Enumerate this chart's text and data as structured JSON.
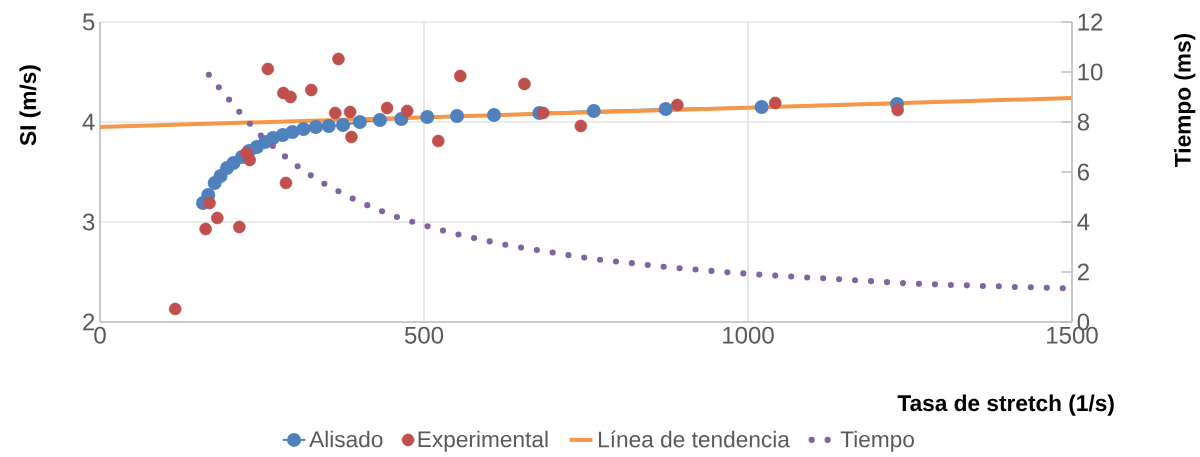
{
  "chart_data": {
    "type": "scatter",
    "xlabel": "Tasa de stretch (1/s)",
    "ylabel": "SI (m/s)",
    "y2label": "Tiempo (ms)",
    "xlim": [
      0,
      1500
    ],
    "xticks": [
      0,
      500,
      1000,
      1500
    ],
    "ylim": [
      2,
      5
    ],
    "yticks": [
      2,
      3,
      4,
      5
    ],
    "y2lim": [
      0,
      12
    ],
    "y2ticks": [
      0,
      2,
      4,
      6,
      8,
      10,
      12
    ],
    "grid": true,
    "legend": "bottom",
    "series": [
      {
        "name": "Alisado",
        "type": "line",
        "color": "#4f81bd",
        "marker": "circle",
        "line_style": "solid",
        "x": [
          159,
          167,
          177,
          186,
          196,
          206,
          219,
          230,
          242,
          255,
          267,
          282,
          297,
          314,
          333,
          353,
          375,
          401,
          432,
          465,
          505,
          551,
          608,
          678,
          762,
          873,
          1021,
          1230
        ],
        "values": [
          3.19,
          3.27,
          3.39,
          3.46,
          3.54,
          3.59,
          3.65,
          3.71,
          3.75,
          3.8,
          3.84,
          3.87,
          3.9,
          3.93,
          3.95,
          3.96,
          3.97,
          4.0,
          4.02,
          4.03,
          4.05,
          4.06,
          4.07,
          4.09,
          4.11,
          4.13,
          4.15,
          4.18
        ]
      },
      {
        "name": "Experimental",
        "color": "#c0504d",
        "marker": "circle",
        "x": [
          116,
          163,
          169,
          181,
          215,
          226,
          231,
          259,
          283,
          294,
          287,
          326,
          368,
          363,
          386,
          388,
          443,
          474,
          522,
          556,
          655,
          684,
          742,
          891,
          1042,
          1231
        ],
        "values": [
          2.13,
          2.93,
          3.19,
          3.04,
          2.95,
          3.69,
          3.62,
          4.53,
          4.29,
          4.25,
          3.39,
          4.32,
          4.63,
          4.09,
          4.1,
          3.85,
          4.14,
          4.11,
          3.81,
          4.46,
          4.38,
          4.09,
          3.96,
          4.17,
          4.19,
          4.12
        ]
      },
      {
        "name": "Línea de tendencia",
        "type": "line",
        "color": "#f79646",
        "marker": "none",
        "line_style": "solid",
        "x": [
          0,
          1500
        ],
        "values": [
          3.95,
          4.24
        ]
      },
      {
        "name": "Tiempo",
        "type": "line",
        "axis": "y2",
        "color": "#8064a2",
        "marker": "none",
        "line_style": "dotted",
        "x": [
          168,
          184,
          200,
          216,
          233,
          250,
          269,
          288,
          308,
          329,
          350,
          373,
          395,
          418,
          441,
          465,
          489,
          513,
          537,
          561,
          586,
          611,
          635,
          660,
          685,
          709,
          734,
          759,
          784,
          809,
          834,
          859,
          884,
          909,
          934,
          959,
          984,
          1009,
          1034,
          1059,
          1084,
          1110,
          1135,
          1159,
          1185,
          1210,
          1235,
          1260,
          1285,
          1310,
          1335,
          1360,
          1385,
          1410,
          1436,
          1460,
          1486
        ],
        "values": [
          9.89,
          9.37,
          8.87,
          8.37,
          7.88,
          7.41,
          6.99,
          6.57,
          6.17,
          5.8,
          5.47,
          5.16,
          4.87,
          4.61,
          4.37,
          4.13,
          3.96,
          3.77,
          3.6,
          3.45,
          3.31,
          3.17,
          3.04,
          2.93,
          2.84,
          2.73,
          2.63,
          2.53,
          2.45,
          2.39,
          2.31,
          2.24,
          2.17,
          2.12,
          2.07,
          2.0,
          1.96,
          1.91,
          1.87,
          1.83,
          1.79,
          1.76,
          1.72,
          1.68,
          1.64,
          1.6,
          1.56,
          1.53,
          1.51,
          1.48,
          1.47,
          1.44,
          1.43,
          1.4,
          1.39,
          1.37,
          1.35
        ]
      }
    ]
  }
}
